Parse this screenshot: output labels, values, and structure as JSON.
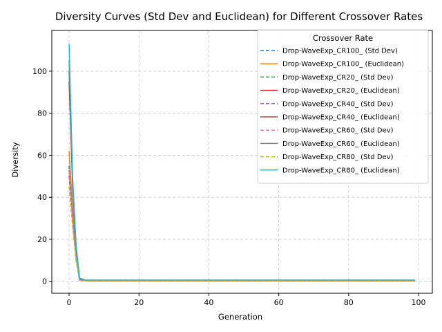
{
  "chart_data": {
    "type": "line",
    "title": "Diversity Curves (Std Dev and Euclidean) for Different Crossover Rates",
    "xlabel": "Generation",
    "ylabel": "Diversity",
    "xlim": [
      -4.95,
      103.95
    ],
    "ylim": [
      -5.7,
      119.4
    ],
    "xticks": [
      0,
      20,
      40,
      60,
      80,
      100
    ],
    "yticks": [
      0,
      20,
      40,
      60,
      80,
      100
    ],
    "grid": true,
    "legend": {
      "title": "Crossover Rate",
      "placement": "top-right"
    },
    "series": [
      {
        "name": "Drop-WaveExp_CR100_ (Std Dev)",
        "color": "#1f77b4",
        "style": "dashed",
        "x": [
          0,
          1,
          2,
          3,
          5,
          99
        ],
        "y": [
          55,
          30,
          12,
          0.6,
          0.2,
          0.2
        ]
      },
      {
        "name": "Drop-WaveExp_CR100_ (Euclidean)",
        "color": "#ff7f0e",
        "style": "solid",
        "x": [
          0,
          1,
          2,
          3,
          5,
          99
        ],
        "y": [
          62,
          35,
          14,
          1.0,
          0.4,
          0.4
        ]
      },
      {
        "name": "Drop-WaveExp_CR20_ (Std Dev)",
        "color": "#2ca02c",
        "style": "dashed",
        "x": [
          0,
          1,
          2,
          3,
          5,
          99
        ],
        "y": [
          50,
          28,
          10,
          0.4,
          0.1,
          0.1
        ]
      },
      {
        "name": "Drop-WaveExp_CR20_ (Euclidean)",
        "color": "#d62728",
        "style": "solid",
        "x": [
          0,
          1,
          2,
          3,
          5,
          99
        ],
        "y": [
          95,
          45,
          15,
          1.2,
          0.5,
          0.5
        ]
      },
      {
        "name": "Drop-WaveExp_CR40_ (Std Dev)",
        "color": "#9467bd",
        "style": "dashed",
        "x": [
          0,
          1,
          2,
          3,
          5,
          99
        ],
        "y": [
          53,
          29,
          11,
          0.5,
          0.2,
          0.2
        ]
      },
      {
        "name": "Drop-WaveExp_CR40_ (Euclidean)",
        "color": "#8c564b",
        "style": "solid",
        "x": [
          0,
          1,
          2,
          3,
          5,
          99
        ],
        "y": [
          100,
          47,
          16,
          1.3,
          0.5,
          0.5
        ]
      },
      {
        "name": "Drop-WaveExp_CR60_ (Std Dev)",
        "color": "#e377c2",
        "style": "dashed",
        "x": [
          0,
          1,
          2,
          3,
          5,
          99
        ],
        "y": [
          52,
          28,
          11,
          0.5,
          0.2,
          0.2
        ]
      },
      {
        "name": "Drop-WaveExp_CR60_ (Euclidean)",
        "color": "#7f7f7f",
        "style": "solid",
        "x": [
          0,
          1,
          2,
          3,
          5,
          99
        ],
        "y": [
          105,
          48,
          17,
          1.3,
          0.5,
          0.5
        ]
      },
      {
        "name": "Drop-WaveExp_CR80_ (Std Dev)",
        "color": "#bcbd22",
        "style": "dashed",
        "x": [
          0,
          1,
          2,
          3,
          5,
          99
        ],
        "y": [
          45,
          26,
          10,
          0.4,
          0.1,
          0.1
        ]
      },
      {
        "name": "Drop-WaveExp_CR80_ (Euclidean)",
        "color": "#17becf",
        "style": "solid",
        "x": [
          0,
          1,
          2,
          3,
          5,
          99
        ],
        "y": [
          113,
          50,
          17,
          1.5,
          0.5,
          0.5
        ]
      }
    ]
  }
}
